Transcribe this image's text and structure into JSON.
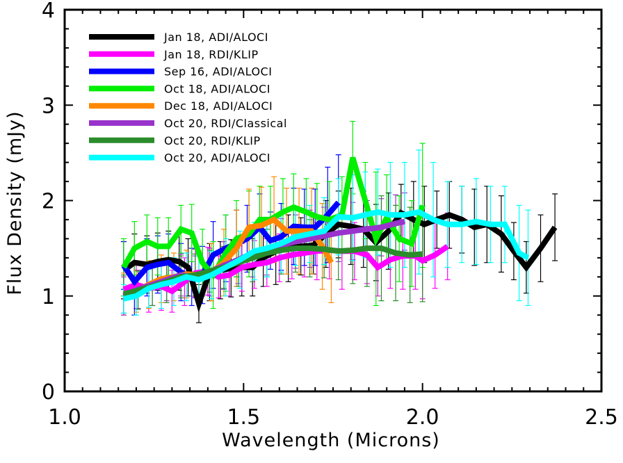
{
  "chart_data": {
    "type": "line",
    "xlabel": "Wavelength (Microns)",
    "ylabel": "Flux Density (mJy)",
    "xlim": [
      1.0,
      2.5
    ],
    "ylim": [
      0,
      4
    ],
    "x_ticks": [
      "1.0",
      "1.5",
      "2.0",
      "2.5"
    ],
    "y_ticks": [
      "0",
      "1",
      "2",
      "3",
      "4"
    ],
    "legend_position": "top-left",
    "grid": false,
    "series": [
      {
        "name": "Jan 18, ADI/ALOCI",
        "color": "#000000",
        "x": [
          1.165,
          1.195,
          1.23,
          1.26,
          1.29,
          1.32,
          1.345,
          1.375,
          1.405,
          1.435,
          1.465,
          1.495,
          1.525,
          1.555,
          1.59,
          1.625,
          1.66,
          1.695,
          1.73,
          1.765,
          1.8,
          1.835,
          1.87,
          1.905,
          1.94,
          1.975,
          2.005,
          2.04,
          2.075,
          2.11,
          2.145,
          2.18,
          2.22,
          2.255,
          2.29,
          2.33,
          2.37
        ],
        "y": [
          1.27,
          1.35,
          1.33,
          1.36,
          1.38,
          1.36,
          1.3,
          0.92,
          1.25,
          1.27,
          1.29,
          1.3,
          1.3,
          1.4,
          1.47,
          1.5,
          1.52,
          1.53,
          1.65,
          1.75,
          1.73,
          1.7,
          1.56,
          1.68,
          1.87,
          1.8,
          1.75,
          1.8,
          1.85,
          1.8,
          1.72,
          1.75,
          1.65,
          1.47,
          1.3,
          1.5,
          1.72
        ],
        "err": [
          0.3,
          0.3,
          0.3,
          0.3,
          0.3,
          0.3,
          0.3,
          0.2,
          0.3,
          0.3,
          0.3,
          0.3,
          0.3,
          0.3,
          0.35,
          0.35,
          0.3,
          0.3,
          0.35,
          0.35,
          0.4,
          0.4,
          0.4,
          0.4,
          0.3,
          0.4,
          0.4,
          0.3,
          0.35,
          0.35,
          0.4,
          0.4,
          0.4,
          0.3,
          0.27,
          0.35,
          0.35
        ]
      },
      {
        "name": "Jan 18, RDI/KLIP",
        "color": "#ff00ff",
        "x": [
          1.165,
          1.2,
          1.235,
          1.27,
          1.3,
          1.335,
          1.365,
          1.4,
          1.43,
          1.46,
          1.495,
          1.53,
          1.565,
          1.6,
          1.635,
          1.67,
          1.705,
          1.74,
          1.775,
          1.81,
          1.845,
          1.875,
          1.91,
          1.945,
          1.98,
          2.0,
          2.035,
          2.07
        ],
        "y": [
          1.07,
          1.12,
          1.08,
          1.1,
          1.05,
          1.15,
          1.24,
          1.26,
          1.2,
          1.22,
          1.3,
          1.33,
          1.35,
          1.4,
          1.43,
          1.45,
          1.47,
          1.48,
          1.47,
          1.47,
          1.43,
          1.3,
          1.38,
          1.42,
          1.42,
          1.37,
          1.43,
          1.52
        ],
        "err": [
          0.25,
          0.25,
          0.25,
          0.25,
          0.22,
          0.25,
          0.25,
          0.25,
          0.22,
          0.22,
          0.25,
          0.25,
          0.25,
          0.25,
          0.25,
          0.25,
          0.3,
          0.3,
          0.4,
          0.3,
          0.3,
          0.3,
          0.3,
          0.35,
          0.35,
          0.4,
          0.35,
          0.35
        ]
      },
      {
        "name": "Sep 16, ADI/ALOCI",
        "color": "#0000ff",
        "x": [
          1.165,
          1.195,
          1.23,
          1.26,
          1.29,
          1.325,
          1.355,
          1.385,
          1.415,
          1.45,
          1.48,
          1.51,
          1.545,
          1.575,
          1.605,
          1.64,
          1.67,
          1.7,
          1.735,
          1.765
        ],
        "y": [
          1.32,
          1.15,
          1.3,
          1.33,
          1.35,
          1.25,
          1.2,
          1.22,
          1.43,
          1.5,
          1.55,
          1.6,
          1.72,
          1.58,
          1.62,
          1.73,
          1.72,
          1.72,
          1.85,
          1.98
        ],
        "err": [
          0.25,
          0.35,
          0.3,
          0.3,
          0.3,
          0.3,
          0.3,
          0.3,
          0.35,
          0.35,
          0.35,
          0.35,
          0.35,
          0.3,
          0.35,
          0.4,
          0.4,
          0.4,
          0.5,
          0.5
        ]
      },
      {
        "name": "Oct 18, ADI/ALOCI",
        "color": "#00ee00",
        "x": [
          1.165,
          1.195,
          1.23,
          1.26,
          1.29,
          1.325,
          1.355,
          1.385,
          1.415,
          1.45,
          1.48,
          1.515,
          1.545,
          1.575,
          1.61,
          1.64,
          1.675,
          1.705,
          1.74,
          1.775,
          1.805,
          1.84,
          1.87,
          1.9,
          1.935,
          1.97,
          2.0
        ],
        "y": [
          1.3,
          1.5,
          1.57,
          1.52,
          1.52,
          1.7,
          1.66,
          1.35,
          1.22,
          1.45,
          1.6,
          1.65,
          1.8,
          1.8,
          1.88,
          1.93,
          1.88,
          1.83,
          1.8,
          1.85,
          2.45,
          2.0,
          1.6,
          1.82,
          1.6,
          1.55,
          1.95
        ],
        "err": [
          0.3,
          0.28,
          0.28,
          0.3,
          0.3,
          0.25,
          0.3,
          0.35,
          0.35,
          0.4,
          0.4,
          0.45,
          0.35,
          0.35,
          0.35,
          0.35,
          0.35,
          0.35,
          0.4,
          0.4,
          0.38,
          0.4,
          0.7,
          0.45,
          0.45,
          0.45,
          0.65
        ]
      },
      {
        "name": "Dec 18, ADI/ALOCI",
        "color": "#ff8800",
        "x": [
          1.165,
          1.2,
          1.235,
          1.27,
          1.305,
          1.34,
          1.375,
          1.41,
          1.445,
          1.48,
          1.515,
          1.55,
          1.585,
          1.62,
          1.655,
          1.69,
          1.72,
          1.745
        ],
        "y": [
          1.02,
          1.05,
          1.12,
          1.18,
          1.2,
          1.23,
          1.22,
          1.25,
          1.35,
          1.5,
          1.72,
          1.74,
          1.8,
          1.68,
          1.68,
          1.68,
          1.52,
          1.35
        ],
        "err": [
          0.22,
          0.22,
          0.25,
          0.25,
          0.25,
          0.25,
          0.25,
          0.3,
          0.35,
          0.4,
          0.4,
          0.4,
          0.45,
          0.45,
          0.45,
          0.45,
          0.45,
          0.42
        ]
      },
      {
        "name": "Oct 20, RDI/Classical",
        "color": "#9933cc",
        "x": [
          1.165,
          1.205,
          1.245,
          1.285,
          1.325,
          1.365,
          1.405,
          1.445,
          1.485,
          1.525,
          1.565,
          1.605,
          1.645,
          1.685,
          1.725,
          1.765,
          1.805,
          1.845,
          1.885,
          1.925,
          1.95
        ],
        "y": [
          1.0,
          1.07,
          1.12,
          1.17,
          1.22,
          1.2,
          1.25,
          1.32,
          1.38,
          1.45,
          1.5,
          1.53,
          1.57,
          1.6,
          1.63,
          1.66,
          1.68,
          1.7,
          1.72,
          1.76,
          1.78
        ],
        "err": [
          0.2,
          0.2,
          0.22,
          0.22,
          0.22,
          0.22,
          0.25,
          0.25,
          0.25,
          0.25,
          0.28,
          0.28,
          0.28,
          0.3,
          0.3,
          0.3,
          0.3,
          0.3,
          0.3,
          0.3,
          0.3
        ]
      },
      {
        "name": "Oct 20, RDI/KLIP",
        "color": "#2a8c2a",
        "x": [
          1.165,
          1.205,
          1.245,
          1.285,
          1.325,
          1.365,
          1.405,
          1.445,
          1.485,
          1.525,
          1.565,
          1.605,
          1.645,
          1.685,
          1.725,
          1.765,
          1.805,
          1.845,
          1.885,
          1.925,
          1.965,
          2.0
        ],
        "y": [
          1.02,
          1.06,
          1.1,
          1.15,
          1.2,
          1.22,
          1.26,
          1.3,
          1.35,
          1.4,
          1.45,
          1.48,
          1.5,
          1.5,
          1.49,
          1.47,
          1.48,
          1.5,
          1.5,
          1.45,
          1.43,
          1.44
        ],
        "err": [
          0.2,
          0.2,
          0.2,
          0.22,
          0.22,
          0.22,
          0.22,
          0.22,
          0.25,
          0.25,
          0.25,
          0.25,
          0.25,
          0.3,
          0.3,
          0.3,
          0.35,
          0.4,
          0.55,
          0.5,
          0.5,
          0.5
        ]
      },
      {
        "name": "Oct 20, ADI/ALOCI",
        "color": "#00ffff",
        "x": [
          1.165,
          1.2,
          1.235,
          1.27,
          1.305,
          1.34,
          1.375,
          1.41,
          1.45,
          1.49,
          1.53,
          1.565,
          1.605,
          1.645,
          1.685,
          1.725,
          1.765,
          1.805,
          1.84,
          1.875,
          1.91,
          1.95,
          1.99,
          2.03,
          2.07,
          2.11,
          2.15,
          2.19,
          2.23,
          2.27,
          2.295
        ],
        "y": [
          0.97,
          1.0,
          1.08,
          1.12,
          1.15,
          1.2,
          1.17,
          1.22,
          1.3,
          1.38,
          1.47,
          1.5,
          1.55,
          1.62,
          1.65,
          1.68,
          1.83,
          1.82,
          1.85,
          1.88,
          1.85,
          1.85,
          1.88,
          1.8,
          1.75,
          1.75,
          1.78,
          1.75,
          1.75,
          1.45,
          1.4
        ],
        "err": [
          0.15,
          0.2,
          0.2,
          0.25,
          0.25,
          0.25,
          0.25,
          0.25,
          0.3,
          0.3,
          0.3,
          0.3,
          0.3,
          0.3,
          0.3,
          0.35,
          0.4,
          0.45,
          0.45,
          0.45,
          0.55,
          0.55,
          0.65,
          0.6,
          0.45,
          0.4,
          0.45,
          0.4,
          0.4,
          0.5,
          0.5
        ]
      }
    ]
  }
}
